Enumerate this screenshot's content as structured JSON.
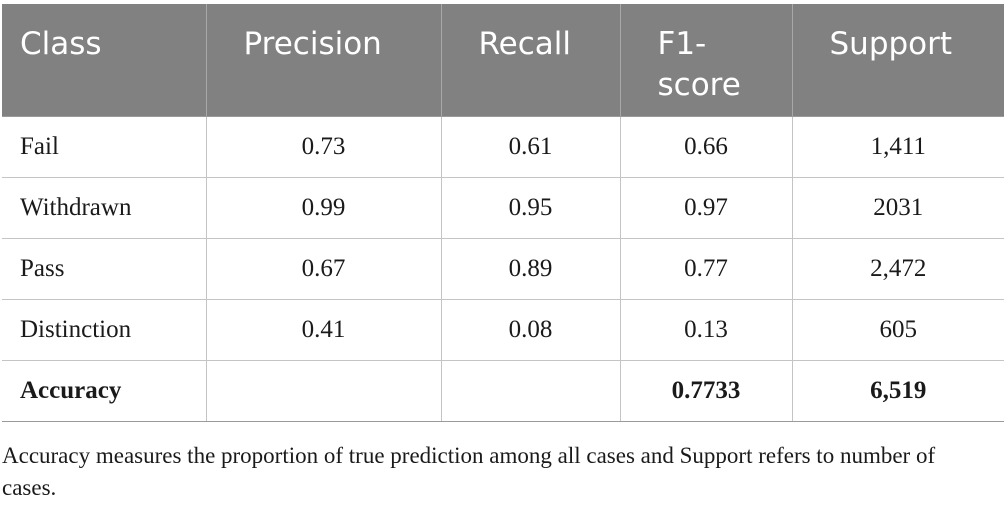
{
  "table": {
    "headers": [
      "Class",
      "Precision",
      "Recall",
      "F1-\nscore",
      "Support"
    ],
    "rows": [
      [
        "Fail",
        "0.73",
        "0.61",
        "0.66",
        "1,411"
      ],
      [
        "Withdrawn",
        "0.99",
        "0.95",
        "0.97",
        "2031"
      ],
      [
        "Pass",
        "0.67",
        "0.89",
        "0.77",
        "2,472"
      ],
      [
        "Distinction",
        "0.41",
        "0.08",
        "0.13",
        "605"
      ]
    ],
    "summary_row": [
      "Accuracy",
      "",
      "",
      "0.7733",
      "6,519"
    ]
  },
  "footnote": "Accuracy measures the proportion of true prediction among all cases and Support refers to number of cases."
}
